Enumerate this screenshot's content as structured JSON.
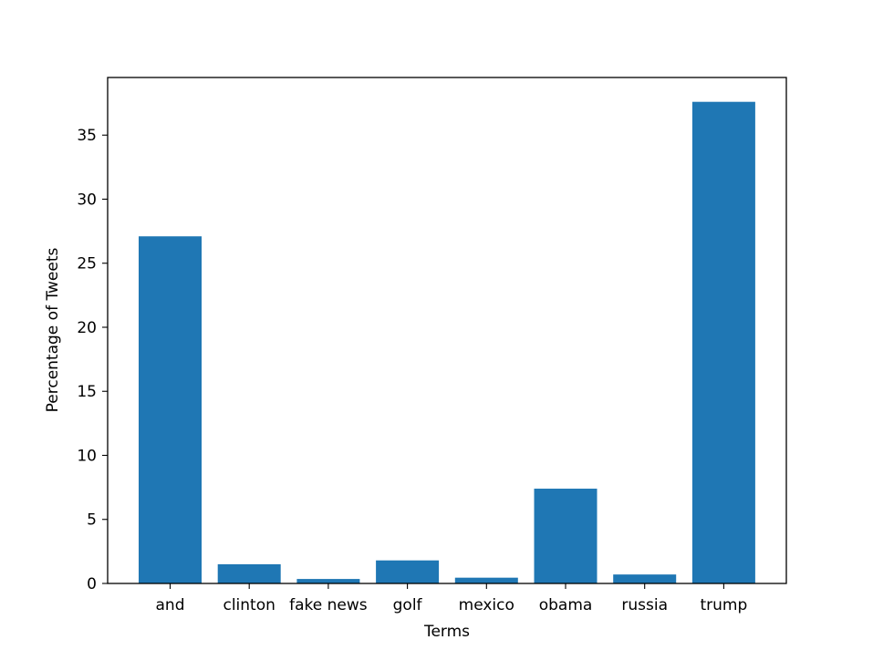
{
  "chart_data": {
    "type": "bar",
    "title": "",
    "xlabel": "Terms",
    "ylabel": "Percentage of Tweets",
    "categories": [
      "and",
      "clinton",
      "fake news",
      "golf",
      "mexico",
      "obama",
      "russia",
      "trump"
    ],
    "values": [
      27.1,
      1.5,
      0.35,
      1.8,
      0.45,
      7.4,
      0.7,
      37.6
    ],
    "ylim": [
      0,
      39.5
    ],
    "yticks": [
      0,
      5,
      10,
      15,
      20,
      25,
      30,
      35
    ],
    "bar_color": "#1f77b4",
    "grid": false,
    "legend": "none"
  }
}
